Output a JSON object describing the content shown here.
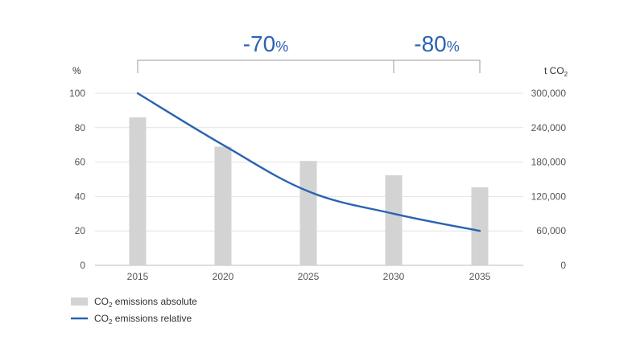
{
  "chart_data": {
    "type": "bar",
    "categories": [
      "2015",
      "2020",
      "2025",
      "2030",
      "2035"
    ],
    "series": [
      {
        "name": "CO2 emissions absolute",
        "type": "bar",
        "axis": "right",
        "color": "#d3d3d3",
        "values": [
          258000,
          207000,
          182000,
          157000,
          136000
        ]
      },
      {
        "name": "CO2 emissions relative",
        "type": "line",
        "axis": "left",
        "color": "#2a63b1",
        "values": [
          100,
          70,
          43,
          30,
          20
        ]
      }
    ],
    "left_axis": {
      "unit": "%",
      "ticks": [
        "0",
        "20",
        "40",
        "60",
        "80",
        "100"
      ],
      "ylim": [
        0,
        100
      ]
    },
    "right_axis": {
      "unit_text": "t CO",
      "unit_subscript": "2",
      "ticks": [
        "0",
        "60,000",
        "120,000",
        "180,000",
        "240,000",
        "300,000"
      ],
      "ylim": [
        0,
        300000
      ]
    },
    "grid": true,
    "legend_position": "bottom-left",
    "legend": [
      {
        "main": "CO",
        "sub": "2",
        "rest": " emissions absolute"
      },
      {
        "main": "CO",
        "sub": "2",
        "rest": " emissions relative"
      }
    ],
    "annotations": [
      {
        "from": "2015",
        "to": "2030",
        "value": "-70",
        "unit": "%"
      },
      {
        "from": "2030",
        "to": "2035",
        "value": "-80",
        "unit": "%"
      }
    ]
  }
}
